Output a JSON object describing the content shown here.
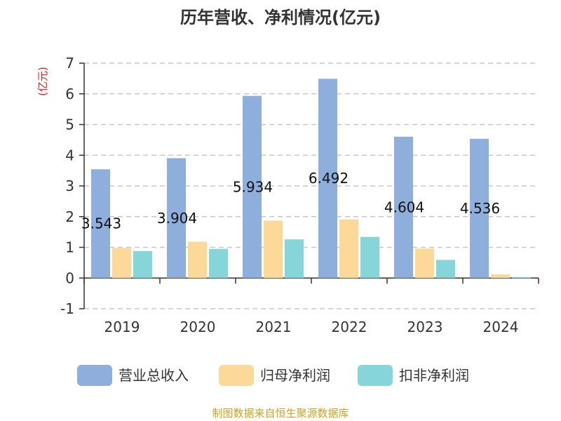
{
  "title": "历年营收、净利情况(亿元)",
  "unit": "(亿元)",
  "source": "制图数据来自恒生聚源数据库",
  "chart_data": {
    "type": "bar",
    "title": "历年营收、净利情况(亿元)",
    "ylabel": "(亿元)",
    "ylim": [
      -1,
      7
    ],
    "yticks": [
      -1,
      0,
      1,
      2,
      3,
      4,
      5,
      6,
      7
    ],
    "grid": true,
    "legend_position": "bottom",
    "categories": [
      "2019",
      "2020",
      "2021",
      "2022",
      "2023",
      "2024"
    ],
    "series": [
      {
        "name": "营业总收入",
        "color": "#8eaedb",
        "values": [
          3.543,
          3.904,
          5.934,
          6.492,
          4.604,
          4.536
        ],
        "labels": [
          "3.543",
          "3.904",
          "5.934",
          "6.492",
          "4.604",
          "4.536"
        ]
      },
      {
        "name": "归母净利润",
        "color": "#fdd999",
        "values": [
          0.98,
          1.18,
          1.87,
          1.91,
          0.96,
          0.12
        ]
      },
      {
        "name": "扣非净利润",
        "color": "#86d5d9",
        "values": [
          0.88,
          0.95,
          1.26,
          1.34,
          0.59,
          0.03
        ]
      }
    ]
  }
}
